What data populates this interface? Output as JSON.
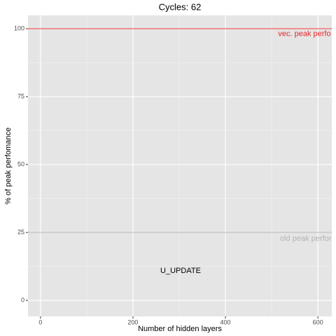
{
  "chart_data": {
    "type": "line",
    "title": "Cycles:  62",
    "x_label": "Number of hidden layers",
    "y_label": "% of peak perfomance",
    "xlim": [
      -27,
      630
    ],
    "xticks": [
      0,
      200,
      400,
      600
    ],
    "xminor": [
      100,
      300,
      500
    ],
    "ylim": [
      -5.9,
      104.9
    ],
    "yticks": [
      0,
      25,
      50,
      75,
      100
    ],
    "yminor": [
      12.5,
      37.5,
      62.5,
      87.5
    ],
    "grid": true,
    "hlines": [
      {
        "value": 100,
        "color": "#f25a5a"
      },
      {
        "value": 25,
        "color": "#bdbdbd"
      }
    ],
    "annotations": [
      {
        "text": "vec. peak perfo",
        "x": 514,
        "y": 98,
        "color": "#e8262a",
        "align": "left"
      },
      {
        "text": "old peak perfor",
        "x": 518,
        "y": 22.7,
        "color": "#b3b3b3",
        "align": "left"
      },
      {
        "text": "U_UPDATE",
        "x": 303,
        "y": 10.8,
        "color": "#000000",
        "align": "center"
      }
    ]
  }
}
